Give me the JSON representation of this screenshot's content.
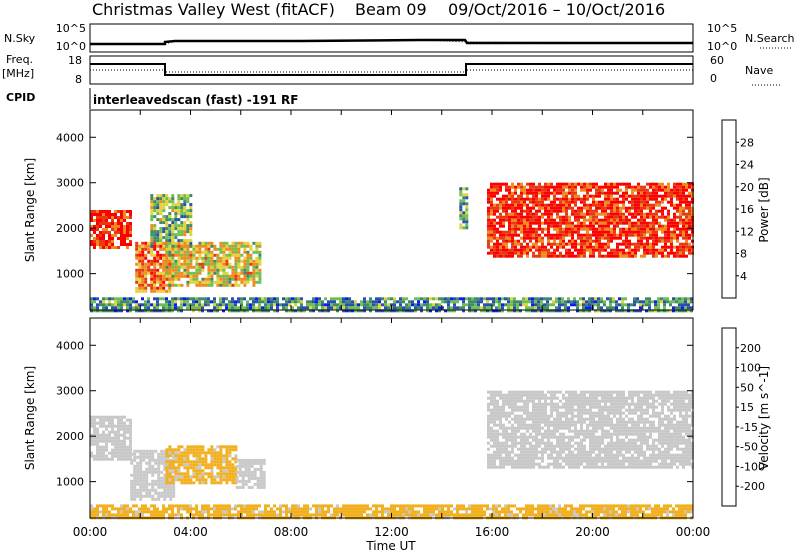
{
  "header": {
    "title": "Christmas Valley West (fitACF)",
    "beam": "Beam 09",
    "date_range": "09/Oct/2016 – 10/Oct/2016"
  },
  "status_panels": {
    "nsky_label": "N.Sky",
    "nsky_ticks": [
      "10^5",
      "10^0"
    ],
    "nsearch_label": "N.Search",
    "nsearch_ticks": [
      "10^5",
      "10^0"
    ],
    "freq_label": "Freq.",
    "freq_unit": "[MHz]",
    "freq_ticks": [
      "18",
      "8"
    ],
    "nave_label": "Nave",
    "nave_ticks": [
      "60",
      "0"
    ],
    "cpid_label": "CPID",
    "cpid_text": "interleavedscan (fast) -191 RF"
  },
  "colors": {
    "background": "#ffffff",
    "echo_gray": "#c8c8c8"
  },
  "chart_data": [
    {
      "type": "heatmap",
      "title": "",
      "ylabel": "Slant Range [km]",
      "xlabel": "",
      "x_ticks": [
        "00:00",
        "04:00",
        "08:00",
        "12:00",
        "16:00",
        "20:00",
        "00:00"
      ],
      "x_range_hours": [
        0,
        24
      ],
      "y_ticks": [
        1000,
        2000,
        3000,
        4000
      ],
      "ylim": [
        200,
        4600
      ],
      "colorbar": {
        "label": "Power [dB]",
        "ticks": [
          "4",
          "8",
          "12",
          "16",
          "20",
          "24",
          "28"
        ],
        "colors": [
          "#0a1ef0",
          "#2a4fb0",
          "#3f8a6a",
          "#6fbe52",
          "#e3d23c",
          "#f08a1c",
          "#e63a12",
          "#ff0000"
        ]
      },
      "regions": [
        {
          "t0": 0.0,
          "t1": 1.6,
          "r0": 1550,
          "r1": 2400,
          "value": 28
        },
        {
          "t0": 2.4,
          "t1": 4.0,
          "r0": 1600,
          "r1": 2750,
          "value": 14
        },
        {
          "t0": 1.8,
          "t1": 3.2,
          "r0": 600,
          "r1": 1700,
          "value": 24
        },
        {
          "t0": 3.0,
          "t1": 6.8,
          "r0": 750,
          "r1": 1700,
          "value": 18
        },
        {
          "t0": 15.8,
          "t1": 24.0,
          "r0": 1350,
          "r1": 3000,
          "value": 28
        },
        {
          "t0": 14.7,
          "t1": 15.0,
          "r0": 2000,
          "r1": 2900,
          "value": 12
        },
        {
          "t0": 0.0,
          "t1": 24.0,
          "r0": 200,
          "r1": 480,
          "value": 10
        }
      ]
    },
    {
      "type": "heatmap",
      "title": "",
      "ylabel": "Slant Range [km]",
      "xlabel": "Time UT",
      "x_ticks": [
        "00:00",
        "04:00",
        "08:00",
        "12:00",
        "16:00",
        "20:00",
        "00:00"
      ],
      "x_range_hours": [
        0,
        24
      ],
      "y_ticks": [
        1000,
        2000,
        3000,
        4000
      ],
      "ylim": [
        200,
        4600
      ],
      "colorbar": {
        "label": "Velocity [m s^-1]",
        "ticks": [
          "200",
          "100",
          "50",
          "15",
          "-15",
          "-50",
          "-100",
          "-200"
        ],
        "colors": [
          "#1a1aa0",
          "#2a64b4",
          "#3b8f6c",
          "#78c24a",
          "#c8c8c8",
          "#f2b01e",
          "#f07818",
          "#f04a14",
          "#ff0000"
        ]
      },
      "regions": [
        {
          "t0": 0.0,
          "t1": 1.6,
          "r0": 1500,
          "r1": 2450,
          "value": 0
        },
        {
          "t0": 1.6,
          "t1": 3.3,
          "r0": 600,
          "r1": 1700,
          "value": 0
        },
        {
          "t0": 3.0,
          "t1": 5.8,
          "r0": 1000,
          "r1": 1800,
          "value": -30
        },
        {
          "t0": 5.8,
          "t1": 6.9,
          "r0": 900,
          "r1": 1500,
          "value": 0
        },
        {
          "t0": 15.8,
          "t1": 24.0,
          "r0": 1300,
          "r1": 3000,
          "value": 0
        },
        {
          "t0": 0.0,
          "t1": 24.0,
          "r0": 200,
          "r1": 500,
          "value": -30
        }
      ]
    }
  ]
}
